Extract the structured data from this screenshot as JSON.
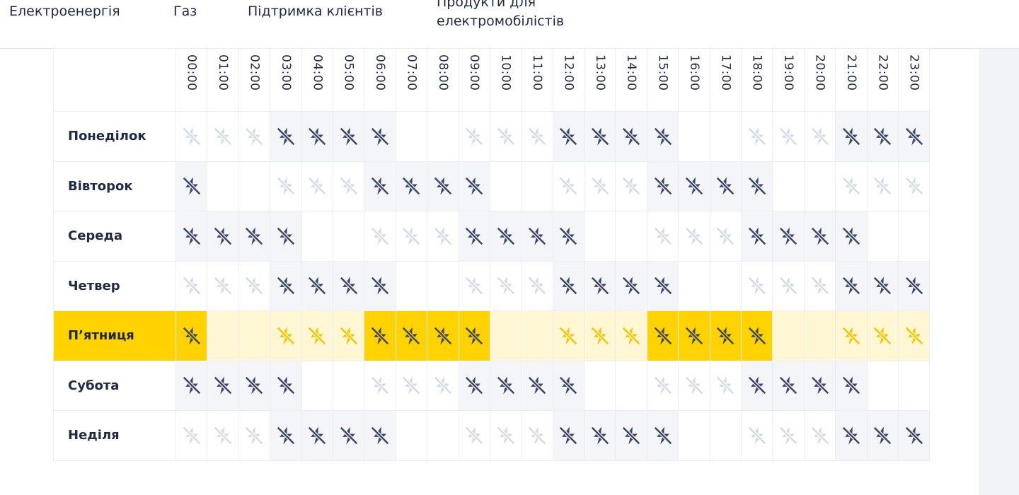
{
  "nav": {
    "items": [
      "Електроенергія",
      "Газ",
      "Підтримка клієнтів",
      "Продукти для електромобілістів"
    ]
  },
  "schedule": {
    "hours": [
      "00:00",
      "01:00",
      "02:00",
      "03:00",
      "04:00",
      "05:00",
      "06:00",
      "07:00",
      "08:00",
      "09:00",
      "10:00",
      "11:00",
      "12:00",
      "13:00",
      "14:00",
      "15:00",
      "16:00",
      "17:00",
      "18:00",
      "19:00",
      "20:00",
      "21:00",
      "22:00",
      "23:00"
    ],
    "highlight_row": 4,
    "rows": [
      {
        "day": "Понеділок",
        "values": [
          1,
          1,
          1,
          2,
          2,
          2,
          2,
          0,
          0,
          1,
          1,
          1,
          2,
          2,
          2,
          2,
          0,
          0,
          1,
          1,
          1,
          2,
          2,
          2
        ]
      },
      {
        "day": "Вівторок",
        "values": [
          2,
          0,
          0,
          1,
          1,
          1,
          2,
          2,
          2,
          2,
          0,
          0,
          1,
          1,
          1,
          2,
          2,
          2,
          2,
          0,
          0,
          1,
          1,
          1
        ]
      },
      {
        "day": "Середа",
        "values": [
          2,
          2,
          2,
          2,
          0,
          0,
          1,
          1,
          1,
          2,
          2,
          2,
          2,
          0,
          0,
          1,
          1,
          1,
          2,
          2,
          2,
          2,
          0,
          0
        ]
      },
      {
        "day": "Четвер",
        "values": [
          1,
          1,
          1,
          2,
          2,
          2,
          2,
          0,
          0,
          1,
          1,
          1,
          2,
          2,
          2,
          2,
          0,
          0,
          1,
          1,
          1,
          2,
          2,
          2
        ]
      },
      {
        "day": "П’ятниця",
        "values": [
          2,
          0,
          0,
          1,
          1,
          1,
          2,
          2,
          2,
          2,
          0,
          0,
          1,
          1,
          1,
          2,
          2,
          2,
          2,
          0,
          0,
          1,
          1,
          1
        ]
      },
      {
        "day": "Субота",
        "values": [
          2,
          2,
          2,
          2,
          0,
          0,
          1,
          1,
          1,
          2,
          2,
          2,
          2,
          0,
          0,
          1,
          1,
          1,
          2,
          2,
          2,
          2,
          0,
          0
        ]
      },
      {
        "day": "Неділя",
        "values": [
          1,
          1,
          1,
          2,
          2,
          2,
          2,
          0,
          0,
          1,
          1,
          1,
          2,
          2,
          2,
          2,
          0,
          0,
          1,
          1,
          1,
          2,
          2,
          2
        ]
      }
    ]
  }
}
